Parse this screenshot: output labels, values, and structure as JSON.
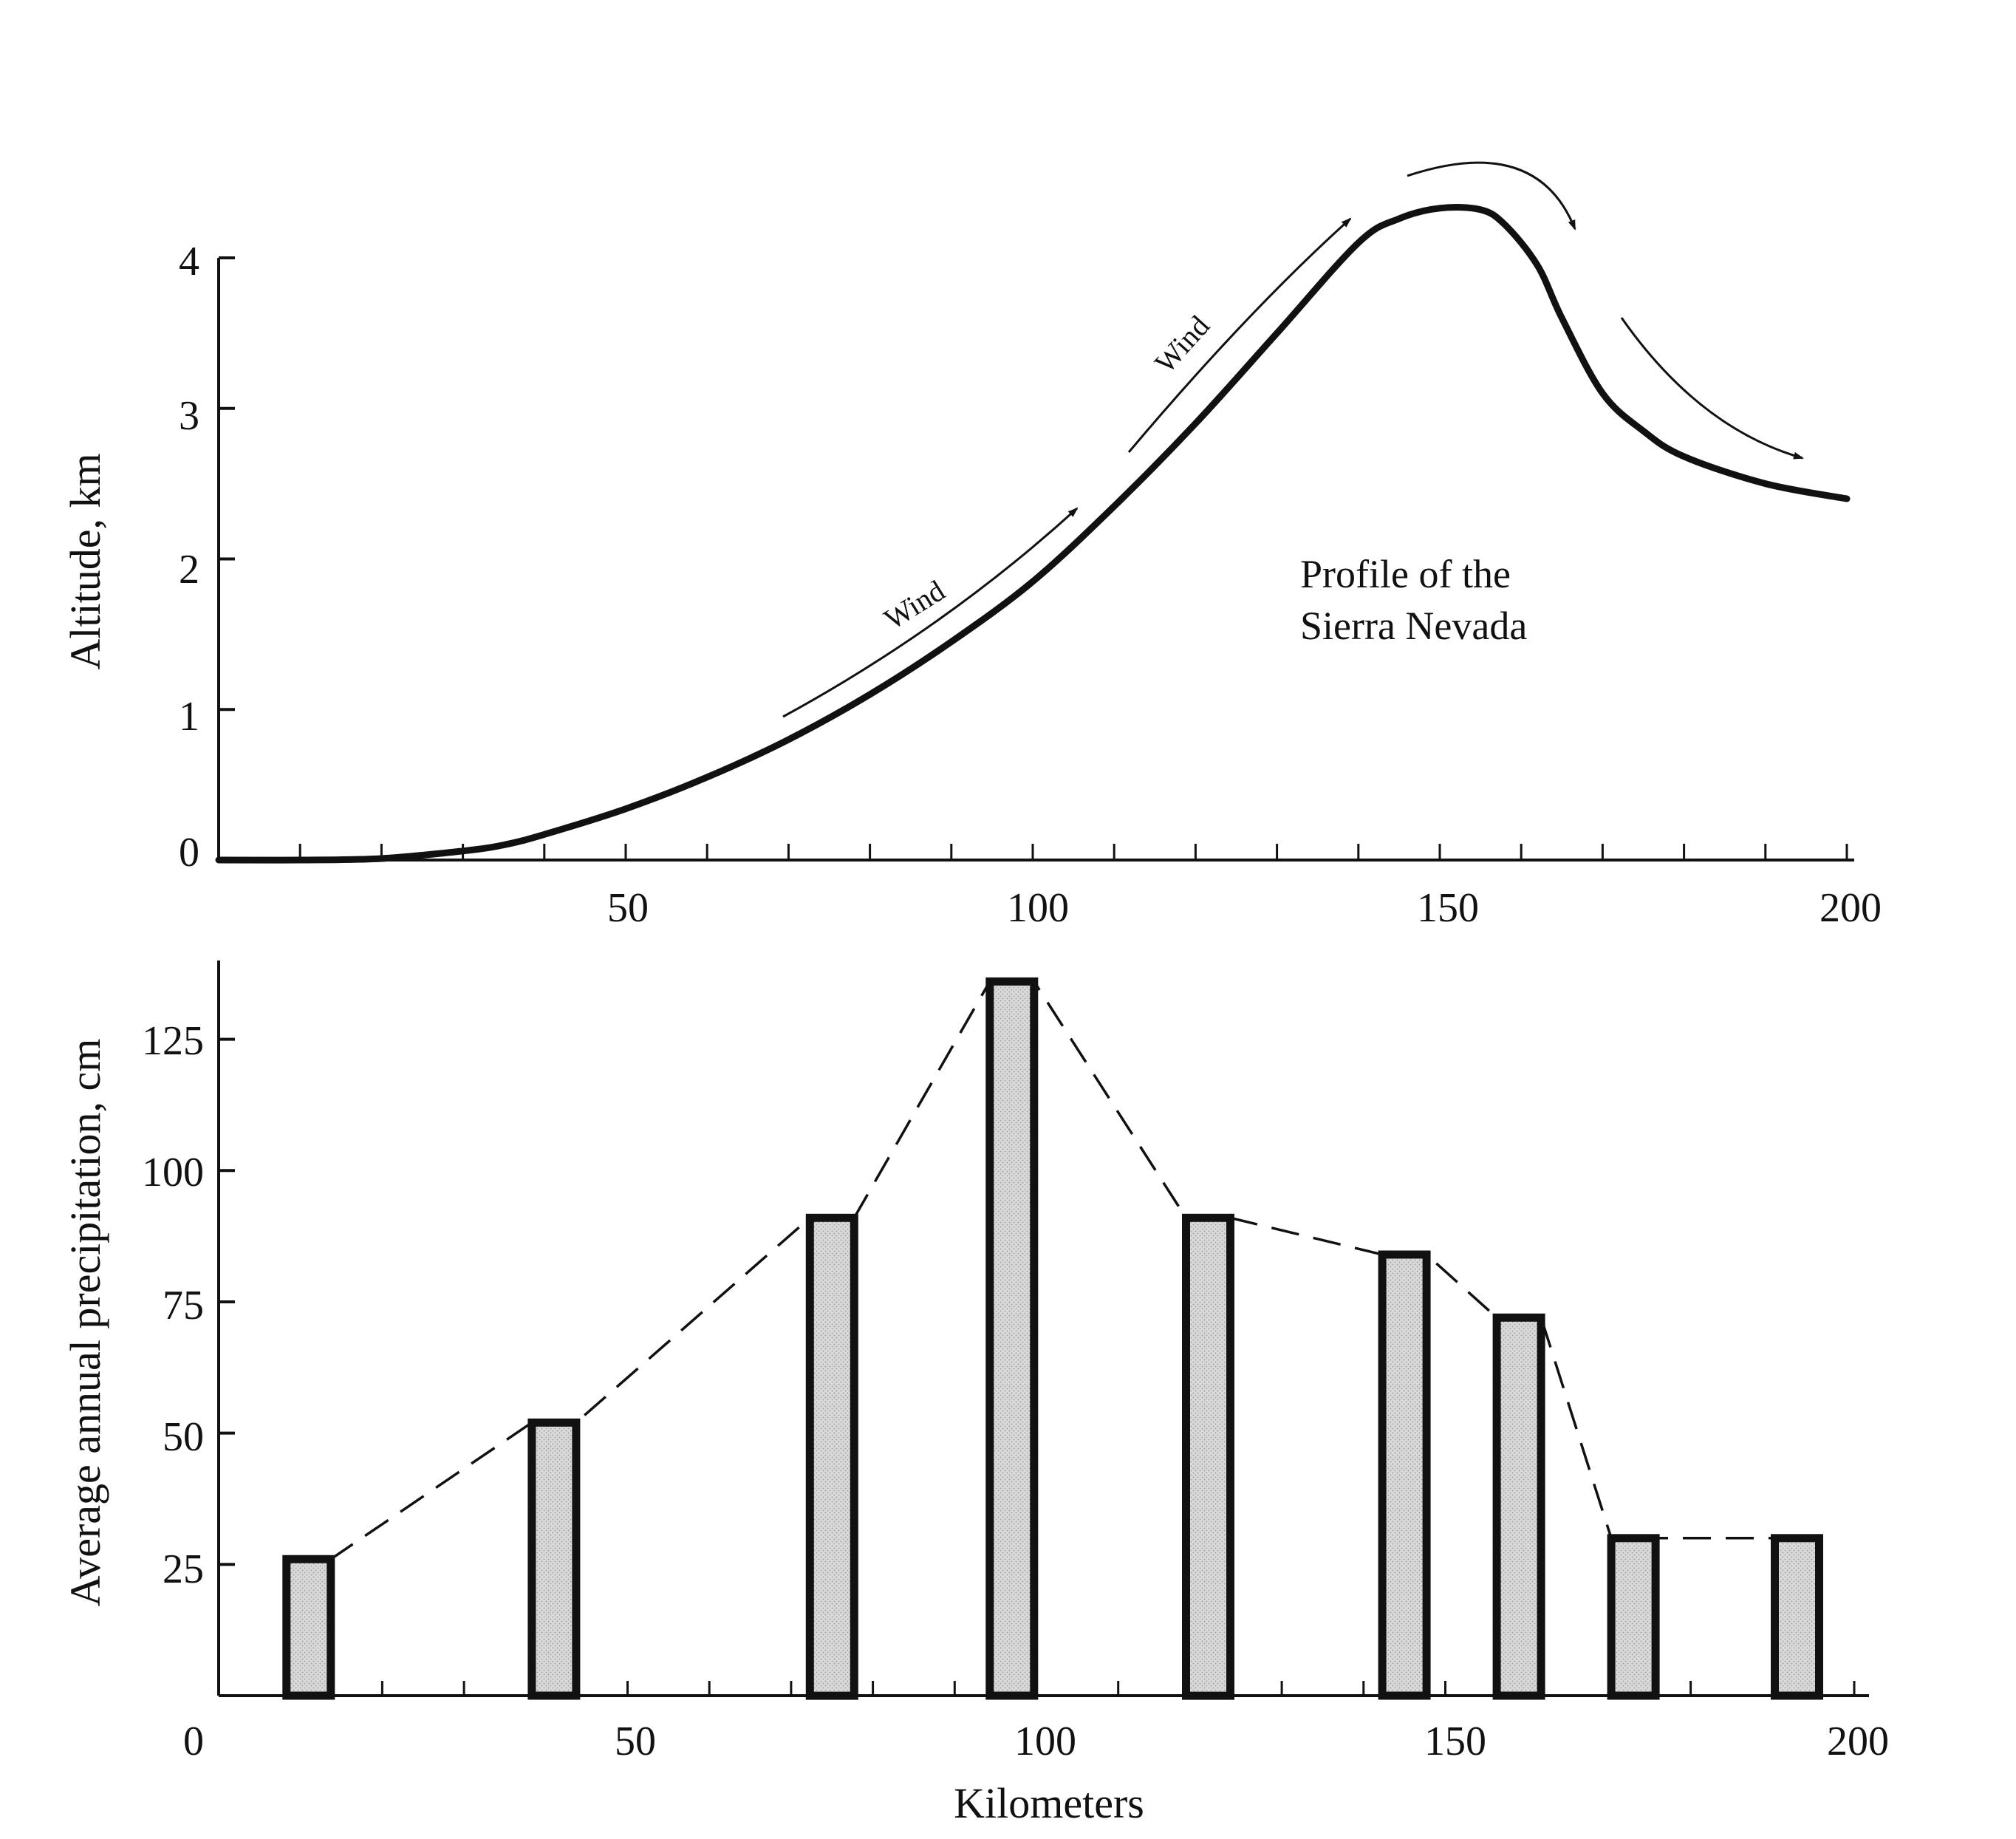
{
  "colors": {
    "ink": "#111111",
    "bar_fill": "#d4d4d4",
    "background": "#ffffff"
  },
  "chart_data": [
    {
      "type": "line",
      "title": "Profile of the Sierra Nevada",
      "annotation": [
        "Profile of the",
        "Sierra Nevada"
      ],
      "wind_labels": [
        "Wind",
        "Wind"
      ],
      "xlabel": "",
      "ylabel": "Altitude, km",
      "xlim": [
        0,
        200
      ],
      "ylim": [
        0,
        4
      ],
      "xticks": [
        50,
        100,
        150,
        200
      ],
      "yticks": [
        0,
        1,
        2,
        3,
        4
      ],
      "series": [
        {
          "name": "Sierra Nevada profile",
          "x": [
            0,
            10,
            20,
            30,
            35,
            40,
            50,
            60,
            70,
            80,
            90,
            100,
            110,
            120,
            130,
            140,
            145,
            150,
            155,
            158,
            162,
            165,
            170,
            175,
            180,
            190,
            200
          ],
          "y": [
            0.0,
            0.0,
            0.01,
            0.06,
            0.1,
            0.17,
            0.34,
            0.55,
            0.8,
            1.1,
            1.45,
            1.85,
            2.35,
            2.9,
            3.5,
            4.1,
            4.26,
            4.33,
            4.32,
            4.22,
            3.95,
            3.6,
            3.1,
            2.85,
            2.68,
            2.5,
            2.4
          ]
        }
      ]
    },
    {
      "type": "bar",
      "title": "",
      "xlabel": "Kilometers",
      "ylabel": "Average annual precipitation, cm",
      "xlim": [
        0,
        200
      ],
      "ylim": [
        0,
        140
      ],
      "xticks": [
        0,
        50,
        100,
        150,
        200
      ],
      "yticks": [
        25,
        50,
        75,
        100,
        125
      ],
      "x": [
        11,
        41,
        75,
        97,
        121,
        145,
        159,
        173,
        193
      ],
      "values": [
        26,
        52,
        91,
        136,
        91,
        84,
        72,
        30,
        30
      ]
    }
  ]
}
